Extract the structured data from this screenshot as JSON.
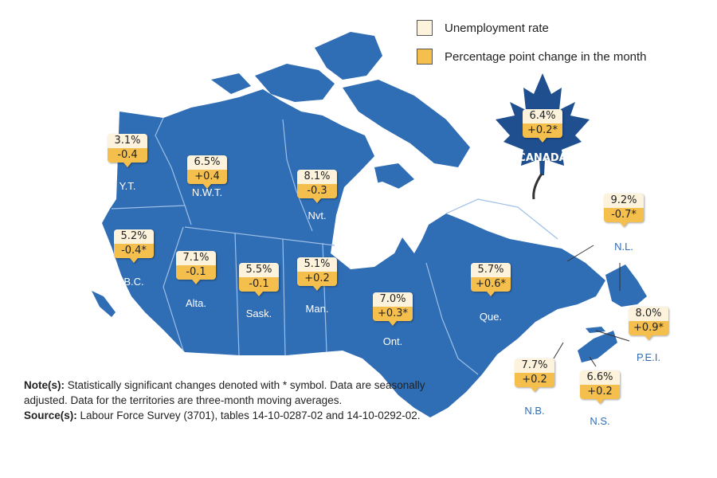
{
  "legend": {
    "items": [
      {
        "label": "Unemployment rate",
        "color": "#fdf3dc"
      },
      {
        "label": "Percentage point change in the month",
        "color": "#f4bf4c"
      }
    ]
  },
  "colors": {
    "land": "#2f6db5",
    "land_dark": "#1f4f8f",
    "border": "#8fb4e0"
  },
  "canada": {
    "label": "CANADA",
    "rate": "6.4%",
    "change": "+0.2*"
  },
  "regions": [
    {
      "id": "yt",
      "label": "Y.T.",
      "rate": "3.1%",
      "change": "-0.4"
    },
    {
      "id": "nwt",
      "label": "N.W.T.",
      "rate": "6.5%",
      "change": "+0.4"
    },
    {
      "id": "nvt",
      "label": "Nvt.",
      "rate": "8.1%",
      "change": "-0.3"
    },
    {
      "id": "bc",
      "label": "B.C.",
      "rate": "5.2%",
      "change": "-0.4*"
    },
    {
      "id": "alta",
      "label": "Alta.",
      "rate": "7.1%",
      "change": "-0.1"
    },
    {
      "id": "sask",
      "label": "Sask.",
      "rate": "5.5%",
      "change": "-0.1"
    },
    {
      "id": "man",
      "label": "Man.",
      "rate": "5.1%",
      "change": "+0.2"
    },
    {
      "id": "ont",
      "label": "Ont.",
      "rate": "7.0%",
      "change": "+0.3*"
    },
    {
      "id": "que",
      "label": "Que.",
      "rate": "5.7%",
      "change": "+0.6*"
    },
    {
      "id": "nl",
      "label": "N.L.",
      "rate": "9.2%",
      "change": "-0.7*"
    },
    {
      "id": "pei",
      "label": "P.E.I.",
      "rate": "8.0%",
      "change": "+0.9*"
    },
    {
      "id": "nb",
      "label": "N.B.",
      "rate": "7.7%",
      "change": "+0.2"
    },
    {
      "id": "ns",
      "label": "N.S.",
      "rate": "6.6%",
      "change": "+0.2"
    }
  ],
  "notes": {
    "note_label": "Note(s):",
    "note_text": " Statistically significant changes denoted with * symbol. Data are seasonally adjusted. Data for the territories are three-month moving averages.",
    "source_label": "Source(s):",
    "source_text": " Labour Force Survey (3701), tables 14-10-0287-02 and 14-10-0292-02."
  }
}
